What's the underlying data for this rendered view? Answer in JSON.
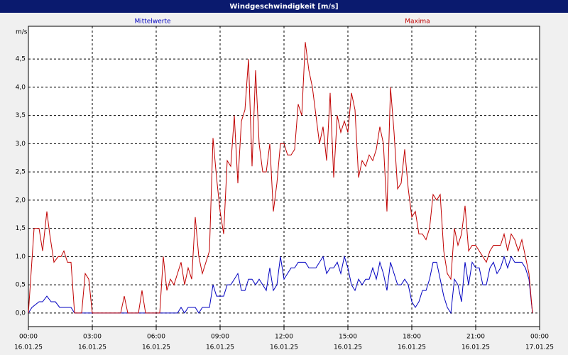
{
  "chart_data": {
    "type": "line",
    "title": "Windgeschwindigkeit [m/s]",
    "y_label": "m/s",
    "xlim": [
      0,
      1440
    ],
    "ylim": [
      -0.24,
      5.08
    ],
    "grid": true,
    "xticks": [
      {
        "value": 0,
        "label": "00:00",
        "date": "16.01.25"
      },
      {
        "value": 180,
        "label": "03:00",
        "date": "16.01.25"
      },
      {
        "value": 360,
        "label": "06:00",
        "date": "16.01.25"
      },
      {
        "value": 540,
        "label": "09:00",
        "date": "16.01.25"
      },
      {
        "value": 720,
        "label": "12:00",
        "date": "16.01.25"
      },
      {
        "value": 900,
        "label": "15:00",
        "date": "16.01.25"
      },
      {
        "value": 1080,
        "label": "18:00",
        "date": "16.01.25"
      },
      {
        "value": 1260,
        "label": "21:00",
        "date": "16.01.25"
      },
      {
        "value": 1440,
        "label": "00:00",
        "date": "17.01.25"
      }
    ],
    "yticks": [
      {
        "value": 0,
        "label": "0,0"
      },
      {
        "value": 0.5,
        "label": "0,5"
      },
      {
        "value": 1,
        "label": "1,0"
      },
      {
        "value": 1.5,
        "label": "1,5"
      },
      {
        "value": 2,
        "label": "2,0"
      },
      {
        "value": 2.5,
        "label": "2,5"
      },
      {
        "value": 3,
        "label": "3,0"
      },
      {
        "value": 3.5,
        "label": "3,5"
      },
      {
        "value": 4,
        "label": "4,0"
      },
      {
        "value": 4.5,
        "label": "4,5"
      }
    ],
    "series": [
      {
        "name": "Mittelwerte",
        "color": "#0000c0",
        "x": [
          0,
          10,
          30,
          40,
          52,
          64,
          76,
          88,
          120,
          130,
          370,
          420,
          430,
          440,
          450,
          460,
          470,
          480,
          490,
          500,
          510,
          520,
          530,
          540,
          550,
          560,
          570,
          580,
          590,
          600,
          610,
          620,
          630,
          640,
          650,
          660,
          670,
          680,
          690,
          700,
          710,
          720,
          730,
          740,
          750,
          760,
          770,
          780,
          790,
          800,
          810,
          820,
          830,
          840,
          850,
          860,
          870,
          880,
          890,
          900,
          910,
          920,
          930,
          940,
          950,
          960,
          970,
          980,
          990,
          1000,
          1010,
          1020,
          1030,
          1040,
          1050,
          1060,
          1070,
          1080,
          1090,
          1100,
          1110,
          1120,
          1130,
          1140,
          1150,
          1160,
          1170,
          1180,
          1190,
          1200,
          1210,
          1220,
          1230,
          1240,
          1250,
          1260,
          1270,
          1280,
          1290,
          1300,
          1310,
          1320,
          1330,
          1340,
          1350,
          1360,
          1370,
          1380,
          1390,
          1400,
          1410,
          1420
        ],
        "values": [
          0,
          0.1,
          0.2,
          0.2,
          0.3,
          0.2,
          0.2,
          0.1,
          0.1,
          0,
          0,
          0,
          0.1,
          0,
          0.1,
          0.1,
          0.1,
          0,
          0.1,
          0.1,
          0.1,
          0.5,
          0.3,
          0.3,
          0.3,
          0.5,
          0.5,
          0.6,
          0.7,
          0.4,
          0.4,
          0.6,
          0.6,
          0.5,
          0.6,
          0.5,
          0.4,
          0.8,
          0.4,
          0.5,
          1.0,
          0.6,
          0.7,
          0.8,
          0.8,
          0.9,
          0.9,
          0.9,
          0.8,
          0.8,
          0.8,
          0.9,
          1.0,
          0.7,
          0.8,
          0.8,
          0.9,
          0.7,
          1.0,
          0.8,
          0.5,
          0.4,
          0.6,
          0.5,
          0.6,
          0.6,
          0.8,
          0.6,
          0.9,
          0.7,
          0.4,
          0.9,
          0.7,
          0.5,
          0.5,
          0.6,
          0.5,
          0.2,
          0.1,
          0.2,
          0.4,
          0.4,
          0.6,
          0.9,
          0.9,
          0.6,
          0.3,
          0.1,
          0,
          0.6,
          0.5,
          0.2,
          0.9,
          0.5,
          0.9,
          0.8,
          0.8,
          0.5,
          0.5,
          0.8,
          0.9,
          0.7,
          0.8,
          1.0,
          0.8,
          1.0,
          0.9,
          0.9,
          0.9,
          0.8,
          0.6,
          0
        ]
      },
      {
        "name": "Maxima",
        "color": "#c00000",
        "x": [
          0,
          16,
          30,
          40,
          52,
          60,
          72,
          84,
          92,
          100,
          110,
          120,
          130,
          150,
          160,
          170,
          180,
          260,
          270,
          280,
          310,
          320,
          330,
          370,
          380,
          390,
          400,
          410,
          420,
          430,
          440,
          450,
          460,
          470,
          480,
          490,
          500,
          510,
          520,
          530,
          540,
          550,
          560,
          570,
          580,
          590,
          600,
          610,
          620,
          630,
          640,
          650,
          660,
          670,
          680,
          690,
          700,
          710,
          720,
          730,
          740,
          750,
          760,
          770,
          780,
          790,
          800,
          810,
          820,
          830,
          840,
          850,
          860,
          870,
          880,
          890,
          900,
          910,
          920,
          930,
          940,
          950,
          960,
          970,
          980,
          990,
          1000,
          1010,
          1020,
          1030,
          1040,
          1050,
          1060,
          1070,
          1080,
          1090,
          1100,
          1110,
          1120,
          1130,
          1140,
          1150,
          1160,
          1170,
          1180,
          1190,
          1200,
          1210,
          1220,
          1230,
          1240,
          1250,
          1260,
          1270,
          1280,
          1290,
          1300,
          1310,
          1320,
          1330,
          1340,
          1350,
          1360,
          1370,
          1380,
          1390,
          1400,
          1410,
          1420
        ],
        "values": [
          0,
          1.5,
          1.5,
          1.1,
          1.8,
          1.4,
          0.9,
          1.0,
          1.0,
          1.1,
          0.9,
          0.9,
          0,
          0,
          0.7,
          0.6,
          0,
          0,
          0.3,
          0,
          0,
          0.4,
          0,
          0,
          1.0,
          0.4,
          0.6,
          0.5,
          0.7,
          0.9,
          0.5,
          0.8,
          0.6,
          1.7,
          1.0,
          0.7,
          0.9,
          1.1,
          3.1,
          2.4,
          1.8,
          1.4,
          2.7,
          2.6,
          3.5,
          2.3,
          3.4,
          3.6,
          4.5,
          2.6,
          4.3,
          3.0,
          2.5,
          2.5,
          3.0,
          1.8,
          2.3,
          3.0,
          3.0,
          2.8,
          2.8,
          2.9,
          3.7,
          3.5,
          4.8,
          4.3,
          4.0,
          3.5,
          3.0,
          3.3,
          2.7,
          3.9,
          2.4,
          3.5,
          3.2,
          3.4,
          3.2,
          3.9,
          3.6,
          2.4,
          2.7,
          2.6,
          2.8,
          2.7,
          2.9,
          3.3,
          3.0,
          1.8,
          4.0,
          3.2,
          2.2,
          2.3,
          2.9,
          2.2,
          1.7,
          1.8,
          1.4,
          1.4,
          1.3,
          1.5,
          2.1,
          2.0,
          2.1,
          1.1,
          0.7,
          0.6,
          1.5,
          1.2,
          1.4,
          1.9,
          1.1,
          1.2,
          1.2,
          1.1,
          1.0,
          0.9,
          1.1,
          1.2,
          1.2,
          1.2,
          1.4,
          1.1,
          1.4,
          1.3,
          1.1,
          1.3,
          1.0,
          0.7,
          0
        ]
      }
    ]
  }
}
